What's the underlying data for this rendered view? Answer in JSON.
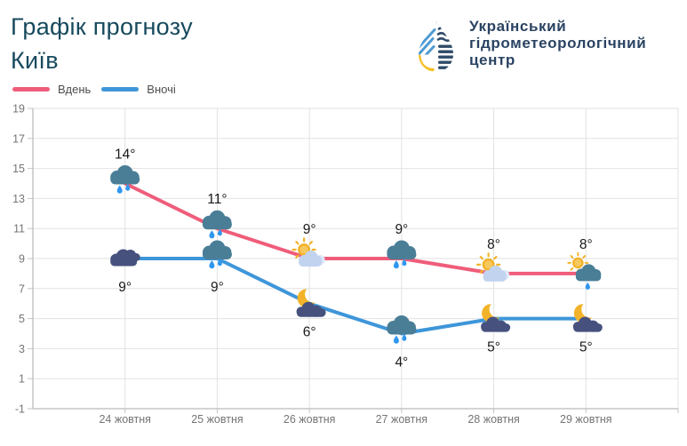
{
  "header": {
    "title_line1": "Графік прогнозу",
    "title_line2": "Київ",
    "logo": {
      "lines": [
        "Український",
        "гідрометеорологічний",
        "центр"
      ]
    }
  },
  "legend": [
    {
      "label": "Вдень",
      "color": "#ef5d7a"
    },
    {
      "label": "Вночі",
      "color": "#3e96d9"
    }
  ],
  "chart_data": {
    "type": "line",
    "title": "Графік прогнозу Київ",
    "categories": [
      "24 жовтня",
      "25 жовтня",
      "26 жовтня",
      "27 жовтня",
      "28 жовтня",
      "29 жовтня"
    ],
    "series": [
      {
        "name": "Вдень",
        "color": "#ef5d7a",
        "values": [
          14,
          11,
          9,
          9,
          8,
          8
        ],
        "icons": [
          "rain-cloud",
          "rain-cloud",
          "sun-cloud",
          "rain-cloud",
          "sun-cloud",
          "sun-rain-cloud"
        ],
        "label_position": "above"
      },
      {
        "name": "Вночі",
        "color": "#3e96d9",
        "values": [
          9,
          9,
          6,
          4,
          5,
          5
        ],
        "icons": [
          "cloudy",
          "rain-cloud",
          "moon-cloud",
          "rain-cloud",
          "moon-cloud",
          "moon-cloud"
        ],
        "label_position": "below"
      }
    ],
    "unit": "°",
    "xlabel": "",
    "ylabel": "",
    "ylim": [
      -1,
      19
    ],
    "yticks": [
      19,
      17,
      15,
      13,
      11,
      9,
      7,
      5,
      3,
      1,
      -1
    ],
    "grid": true,
    "legend_position": "top-left"
  },
  "colors": {
    "background": "#ffffff",
    "title": "#17495d",
    "logo_text": "#2a4362",
    "legend_label": "#4d4d4d",
    "grid": "#e2e2e2",
    "axis": "#a8a8a8",
    "tick": "#c4c4c4",
    "tick_label": "#757575",
    "temp_label": "#1a1a1a"
  }
}
